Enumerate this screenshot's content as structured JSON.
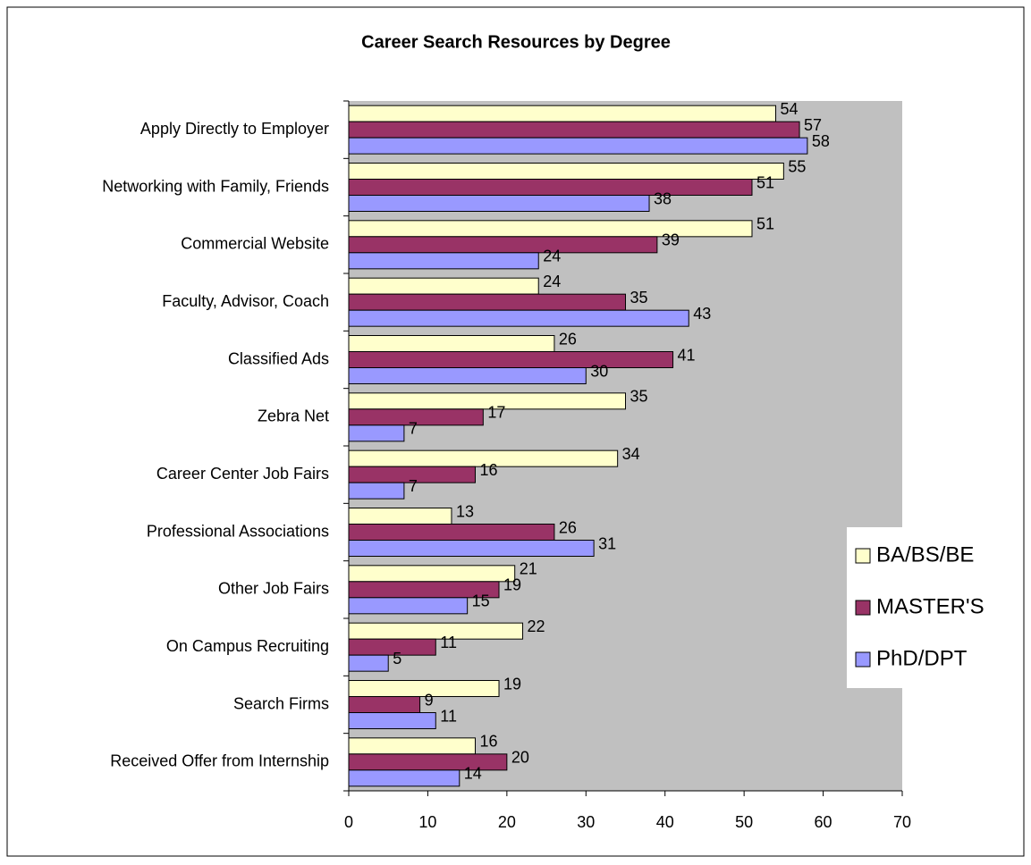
{
  "chart_data": {
    "type": "bar",
    "orientation": "horizontal",
    "title": "Career Search Resources by Degree",
    "categories": [
      "Apply Directly to Employer",
      "Networking with Family, Friends",
      "Commercial Website",
      "Faculty, Advisor, Coach",
      "Classified Ads",
      "Zebra Net",
      "Career Center Job Fairs",
      "Professional Associations",
      "Other Job Fairs",
      "On Campus Recruiting",
      "Search Firms",
      "Received Offer from Internship"
    ],
    "series": [
      {
        "name": "BA/BS/BE",
        "color": "#ffffcc",
        "values": [
          54,
          55,
          51,
          24,
          26,
          35,
          34,
          13,
          21,
          22,
          19,
          16
        ]
      },
      {
        "name": "MASTER'S",
        "color": "#993366",
        "values": [
          57,
          51,
          39,
          35,
          41,
          17,
          16,
          26,
          19,
          11,
          9,
          20
        ]
      },
      {
        "name": "PhD/DPT",
        "color": "#9999ff",
        "values": [
          58,
          38,
          24,
          43,
          30,
          7,
          7,
          31,
          15,
          5,
          11,
          14
        ]
      }
    ],
    "xlim": [
      0,
      70
    ],
    "xticks": [
      0,
      10,
      20,
      30,
      40,
      50,
      60,
      70
    ],
    "grid": false,
    "legend": "right"
  }
}
